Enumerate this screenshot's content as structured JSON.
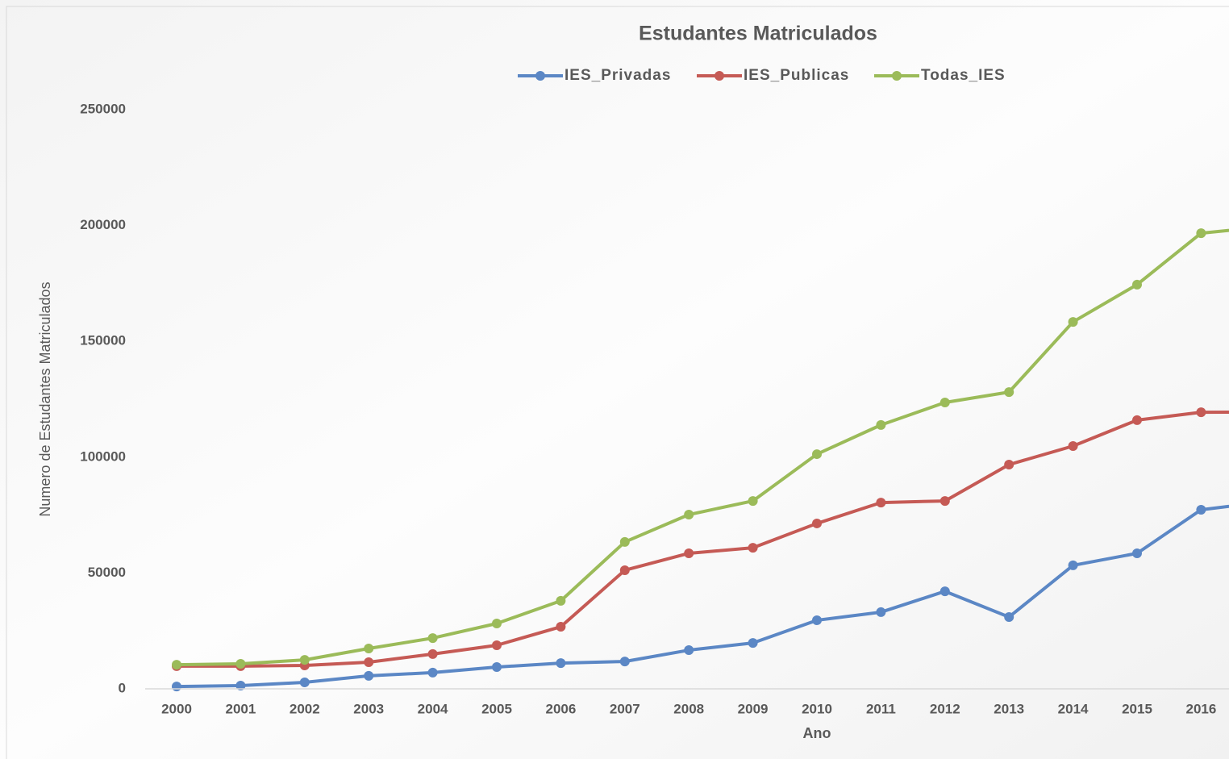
{
  "chart_data": {
    "type": "line",
    "title": "Estudantes Matriculados",
    "x_label": "Ano",
    "y_label": "Numero de Estudantes Matriculados",
    "categories": [
      "2000",
      "2001",
      "2002",
      "2003",
      "2004",
      "2005",
      "2006",
      "2007",
      "2008",
      "2009",
      "2010",
      "2011",
      "2012",
      "2013",
      "2014",
      "2015",
      "2016",
      null
    ],
    "series": [
      {
        "name": "IES_Privadas",
        "color": "#5b87c5",
        "values": [
          1000,
          1400,
          2800,
          5600,
          7000,
          9400,
          11100,
          11800,
          16700,
          19800,
          29600,
          33100,
          42100,
          31000,
          53300,
          58500,
          77300,
          80700
        ]
      },
      {
        "name": "IES_Publicas",
        "color": "#c55a55",
        "values": [
          9800,
          9800,
          10100,
          11500,
          15000,
          18800,
          26800,
          51200,
          58500,
          60900,
          71400,
          80400,
          81100,
          96800,
          104800,
          116000,
          119400,
          119500
        ]
      },
      {
        "name": "Todas_IES",
        "color": "#9bbb59",
        "values": [
          10400,
          10800,
          12500,
          17400,
          21900,
          28200,
          38000,
          63400,
          75200,
          81100,
          101300,
          113900,
          123600,
          128100,
          158400,
          174500,
          196700,
          199500
        ]
      }
    ],
    "ylim": [
      0,
      250000
    ],
    "yticks": [
      0,
      50000,
      100000,
      150000,
      200000,
      250000
    ],
    "grid": false,
    "legend": "top"
  }
}
